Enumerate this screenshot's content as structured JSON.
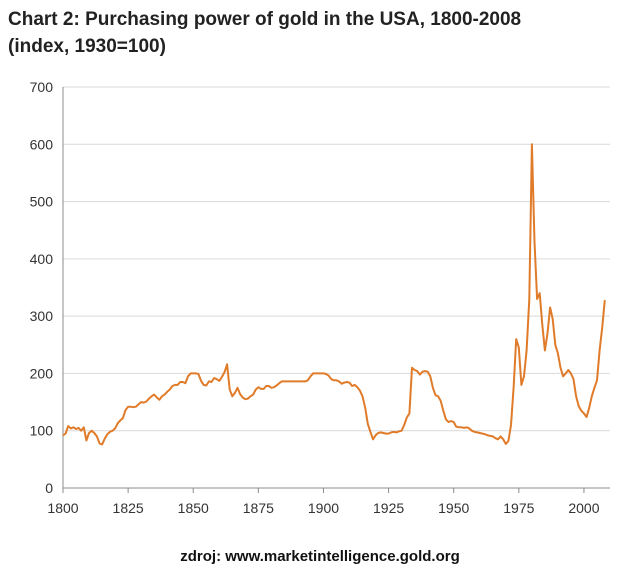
{
  "page": {
    "title_line1": "Chart 2: Purchasing power of gold in the USA, 1800-2008",
    "title_line2": "(index, 1930=100)",
    "source": "zdroj: www.marketintelligence.gold.org"
  },
  "colors": {
    "line": "#e07b2a",
    "grid": "#d9d9d9",
    "axis": "#8c8c8c",
    "text": "#333333"
  },
  "chart_data": {
    "type": "line",
    "title": "Chart 2: Purchasing power of gold in the USA, 1800-2008",
    "subtitle": "(index, 1930=100)",
    "xlabel": "",
    "ylabel": "",
    "xlim": [
      1800,
      2010
    ],
    "ylim": [
      0,
      700
    ],
    "xticks": [
      1800,
      1825,
      1850,
      1875,
      1900,
      1925,
      1950,
      1975,
      2000
    ],
    "yticks": [
      0,
      100,
      200,
      300,
      400,
      500,
      600,
      700
    ],
    "grid": "horizontal",
    "series": [
      {
        "points": [
          [
            1800,
            92
          ],
          [
            1801,
            95
          ],
          [
            1802,
            108
          ],
          [
            1803,
            104
          ],
          [
            1804,
            106
          ],
          [
            1805,
            103
          ],
          [
            1806,
            105
          ],
          [
            1807,
            100
          ],
          [
            1808,
            106
          ],
          [
            1809,
            83
          ],
          [
            1810,
            96
          ],
          [
            1811,
            100
          ],
          [
            1812,
            96
          ],
          [
            1813,
            90
          ],
          [
            1814,
            78
          ],
          [
            1815,
            76
          ],
          [
            1816,
            86
          ],
          [
            1817,
            94
          ],
          [
            1818,
            98
          ],
          [
            1819,
            100
          ],
          [
            1820,
            104
          ],
          [
            1821,
            113
          ],
          [
            1822,
            118
          ],
          [
            1823,
            122
          ],
          [
            1824,
            136
          ],
          [
            1825,
            142
          ],
          [
            1826,
            142
          ],
          [
            1827,
            141
          ],
          [
            1828,
            142
          ],
          [
            1829,
            146
          ],
          [
            1830,
            150
          ],
          [
            1831,
            149
          ],
          [
            1832,
            151
          ],
          [
            1833,
            156
          ],
          [
            1834,
            160
          ],
          [
            1835,
            163
          ],
          [
            1836,
            158
          ],
          [
            1837,
            154
          ],
          [
            1838,
            160
          ],
          [
            1839,
            163
          ],
          [
            1840,
            168
          ],
          [
            1841,
            172
          ],
          [
            1842,
            178
          ],
          [
            1843,
            180
          ],
          [
            1844,
            180
          ],
          [
            1845,
            185
          ],
          [
            1846,
            185
          ],
          [
            1847,
            183
          ],
          [
            1848,
            195
          ],
          [
            1849,
            200
          ],
          [
            1850,
            200
          ],
          [
            1851,
            200
          ],
          [
            1852,
            199
          ],
          [
            1853,
            187
          ],
          [
            1854,
            180
          ],
          [
            1855,
            179
          ],
          [
            1856,
            186
          ],
          [
            1857,
            185
          ],
          [
            1858,
            192
          ],
          [
            1859,
            190
          ],
          [
            1860,
            187
          ],
          [
            1861,
            194
          ],
          [
            1862,
            202
          ],
          [
            1863,
            216
          ],
          [
            1864,
            172
          ],
          [
            1865,
            160
          ],
          [
            1866,
            166
          ],
          [
            1867,
            175
          ],
          [
            1868,
            164
          ],
          [
            1869,
            158
          ],
          [
            1870,
            155
          ],
          [
            1871,
            156
          ],
          [
            1872,
            160
          ],
          [
            1873,
            163
          ],
          [
            1874,
            172
          ],
          [
            1875,
            176
          ],
          [
            1876,
            173
          ],
          [
            1877,
            173
          ],
          [
            1878,
            178
          ],
          [
            1879,
            178
          ],
          [
            1880,
            175
          ],
          [
            1881,
            176
          ],
          [
            1882,
            179
          ],
          [
            1883,
            183
          ],
          [
            1884,
            186
          ],
          [
            1885,
            186
          ],
          [
            1886,
            186
          ],
          [
            1887,
            186
          ],
          [
            1888,
            186
          ],
          [
            1889,
            186
          ],
          [
            1890,
            186
          ],
          [
            1891,
            186
          ],
          [
            1892,
            186
          ],
          [
            1893,
            186
          ],
          [
            1894,
            188
          ],
          [
            1895,
            195
          ],
          [
            1896,
            200
          ],
          [
            1897,
            200
          ],
          [
            1898,
            200
          ],
          [
            1899,
            200
          ],
          [
            1900,
            200
          ],
          [
            1901,
            199
          ],
          [
            1902,
            196
          ],
          [
            1903,
            190
          ],
          [
            1904,
            188
          ],
          [
            1905,
            188
          ],
          [
            1906,
            186
          ],
          [
            1907,
            182
          ],
          [
            1908,
            184
          ],
          [
            1909,
            185
          ],
          [
            1910,
            184
          ],
          [
            1911,
            178
          ],
          [
            1912,
            180
          ],
          [
            1913,
            176
          ],
          [
            1914,
            170
          ],
          [
            1915,
            160
          ],
          [
            1916,
            140
          ],
          [
            1917,
            112
          ],
          [
            1918,
            98
          ],
          [
            1919,
            85
          ],
          [
            1920,
            92
          ],
          [
            1921,
            96
          ],
          [
            1922,
            97
          ],
          [
            1923,
            96
          ],
          [
            1924,
            95
          ],
          [
            1925,
            95
          ],
          [
            1926,
            97
          ],
          [
            1927,
            98
          ],
          [
            1928,
            97
          ],
          [
            1929,
            99
          ],
          [
            1930,
            100
          ],
          [
            1931,
            110
          ],
          [
            1932,
            123
          ],
          [
            1933,
            130
          ],
          [
            1934,
            210
          ],
          [
            1935,
            206
          ],
          [
            1936,
            204
          ],
          [
            1937,
            198
          ],
          [
            1938,
            203
          ],
          [
            1939,
            204
          ],
          [
            1940,
            203
          ],
          [
            1941,
            195
          ],
          [
            1942,
            175
          ],
          [
            1943,
            162
          ],
          [
            1944,
            160
          ],
          [
            1945,
            152
          ],
          [
            1946,
            135
          ],
          [
            1947,
            120
          ],
          [
            1948,
            115
          ],
          [
            1949,
            117
          ],
          [
            1950,
            115
          ],
          [
            1951,
            107
          ],
          [
            1952,
            106
          ],
          [
            1953,
            106
          ],
          [
            1954,
            105
          ],
          [
            1955,
            106
          ],
          [
            1956,
            104
          ],
          [
            1957,
            100
          ],
          [
            1958,
            98
          ],
          [
            1959,
            97
          ],
          [
            1960,
            96
          ],
          [
            1961,
            95
          ],
          [
            1962,
            94
          ],
          [
            1963,
            92
          ],
          [
            1964,
            91
          ],
          [
            1965,
            90
          ],
          [
            1966,
            87
          ],
          [
            1967,
            85
          ],
          [
            1968,
            90
          ],
          [
            1969,
            85
          ],
          [
            1970,
            77
          ],
          [
            1971,
            82
          ],
          [
            1972,
            110
          ],
          [
            1973,
            175
          ],
          [
            1974,
            260
          ],
          [
            1975,
            245
          ],
          [
            1976,
            180
          ],
          [
            1977,
            195
          ],
          [
            1978,
            240
          ],
          [
            1979,
            330
          ],
          [
            1980,
            600
          ],
          [
            1981,
            430
          ],
          [
            1982,
            330
          ],
          [
            1983,
            340
          ],
          [
            1984,
            285
          ],
          [
            1985,
            240
          ],
          [
            1986,
            270
          ],
          [
            1987,
            315
          ],
          [
            1988,
            295
          ],
          [
            1989,
            250
          ],
          [
            1990,
            235
          ],
          [
            1991,
            210
          ],
          [
            1992,
            195
          ],
          [
            1993,
            200
          ],
          [
            1994,
            206
          ],
          [
            1995,
            200
          ],
          [
            1996,
            190
          ],
          [
            1997,
            160
          ],
          [
            1998,
            143
          ],
          [
            1999,
            135
          ],
          [
            2000,
            130
          ],
          [
            2001,
            124
          ],
          [
            2002,
            140
          ],
          [
            2003,
            160
          ],
          [
            2004,
            175
          ],
          [
            2005,
            188
          ],
          [
            2006,
            240
          ],
          [
            2007,
            280
          ],
          [
            2008,
            328
          ]
        ]
      }
    ]
  }
}
